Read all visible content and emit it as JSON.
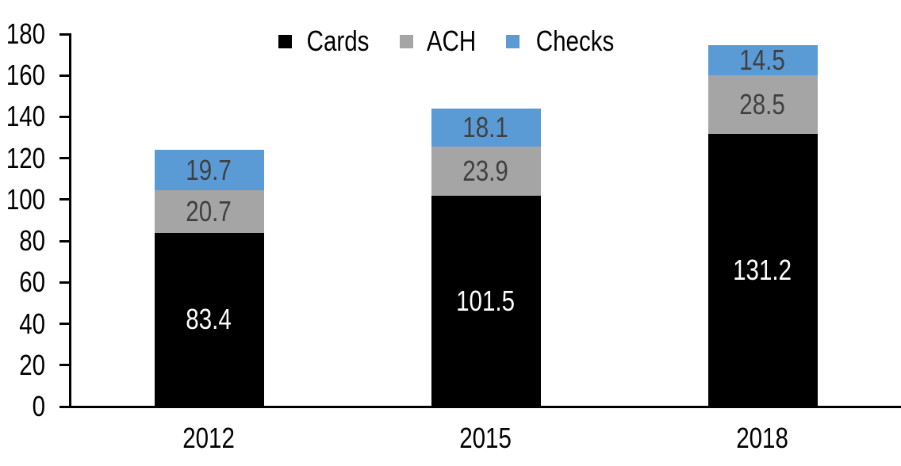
{
  "chart_data": {
    "type": "bar",
    "stacked": true,
    "title": "",
    "categories": [
      "2012",
      "2015",
      "2018"
    ],
    "series": [
      {
        "name": "Cards",
        "color": "#000000",
        "label_color": "#ffffff",
        "values": [
          83.4,
          101.5,
          131.2
        ]
      },
      {
        "name": "ACH",
        "color": "#a5a5a5",
        "label_color": "#404040",
        "values": [
          20.7,
          23.9,
          28.5
        ]
      },
      {
        "name": "Checks",
        "color": "#5b9bd5",
        "label_color": "#404040",
        "values": [
          19.7,
          18.1,
          14.5
        ]
      }
    ],
    "totals": [
      123.8,
      143.5,
      174.2
    ],
    "ylim": [
      0,
      180
    ],
    "yticks": [
      0,
      20,
      40,
      60,
      80,
      100,
      120,
      140,
      160,
      180
    ],
    "grid": false,
    "legend_position": "top",
    "axis_color": "#000000",
    "tick_label_color": "#000000",
    "x_label_color": "#000000"
  }
}
